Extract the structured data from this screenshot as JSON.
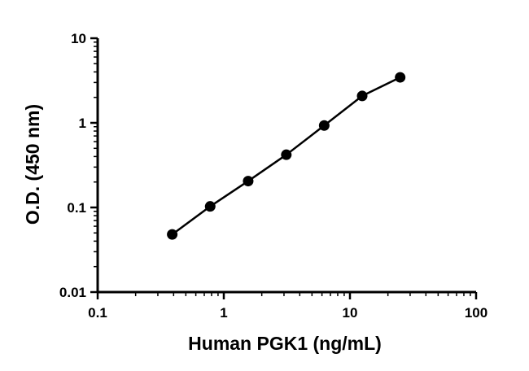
{
  "chart_data": {
    "type": "scatter",
    "title": "",
    "xlabel": "Human PGK1 (ng/mL)",
    "ylabel": "O.D. (450 nm)",
    "xscale": "log",
    "yscale": "log",
    "xlim": [
      0.1,
      100
    ],
    "ylim": [
      0.01,
      10
    ],
    "xticks": [
      0.1,
      1,
      10,
      100
    ],
    "xtick_labels": [
      "0.1",
      "1",
      "10",
      "100"
    ],
    "yticks": [
      0.01,
      0.1,
      1,
      10
    ],
    "ytick_labels": [
      "0.01",
      "0.1",
      "1",
      "10"
    ],
    "grid": false,
    "legend": "none",
    "series": [
      {
        "x": [
          0.39,
          0.78,
          1.56,
          3.13,
          6.25,
          12.5,
          25
        ],
        "y": [
          0.048,
          0.103,
          0.205,
          0.42,
          0.93,
          2.08,
          3.45
        ],
        "marker": "circle",
        "fit_line": true,
        "color": "#000000"
      }
    ]
  }
}
